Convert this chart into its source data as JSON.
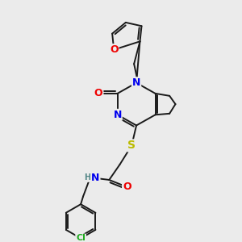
{
  "background_color": "#ebebeb",
  "bond_color": "#1a1a1a",
  "atom_colors": {
    "N": "#0000ee",
    "O": "#ee0000",
    "S": "#bbbb00",
    "Cl": "#22aa22",
    "H": "#558888",
    "C": "#1a1a1a"
  },
  "figsize": [
    3.0,
    3.0
  ],
  "dpi": 100,
  "xlim": [
    0,
    10
  ],
  "ylim": [
    0,
    10
  ]
}
